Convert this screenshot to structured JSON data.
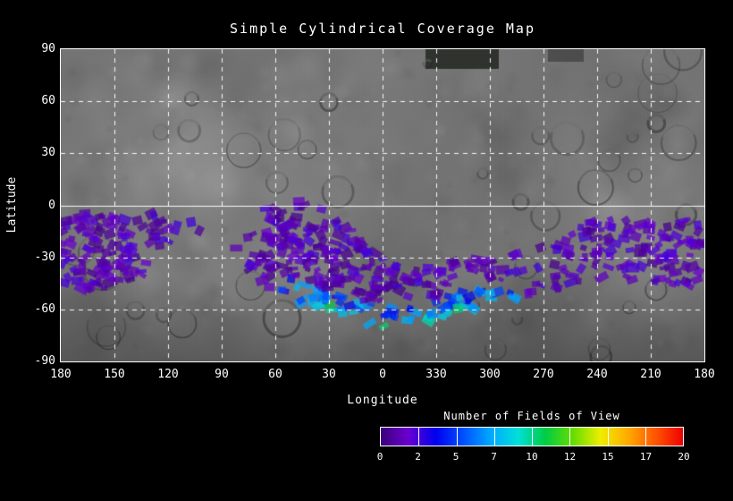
{
  "title": "Simple Cylindrical Coverage Map",
  "axes": {
    "x_label": "Longitude",
    "y_label": "Latitude",
    "x_ticks": [
      "180",
      "150",
      "120",
      "90",
      "60",
      "30",
      "0",
      "330",
      "300",
      "270",
      "240",
      "210",
      "180"
    ],
    "y_ticks": [
      "90",
      "60",
      "30",
      "0",
      "-30",
      "-60",
      "-90"
    ]
  },
  "colorbar": {
    "label": "Number of Fields of View",
    "tick_labels": [
      "0",
      "2",
      "5",
      "7",
      "10",
      "12",
      "15",
      "17",
      "20"
    ],
    "range": [
      0,
      20
    ],
    "border_color": "#ffffff",
    "gradient_stops": [
      "#3a0078",
      "#6a00d0",
      "#0000ee",
      "#0050ff",
      "#00a8ff",
      "#00e0d8",
      "#00cc44",
      "#66dd00",
      "#eeee00",
      "#ffaa00",
      "#ff5500",
      "#ee0000"
    ]
  },
  "chart_data": {
    "type": "heatmap",
    "title": "Simple Cylindrical Coverage Map",
    "xlabel": "Longitude",
    "ylabel": "Latitude",
    "projection": "simple cylindrical, longitude wraps 180 -> 0 -> 330 -> 180",
    "x_tick_values": [
      180,
      150,
      120,
      90,
      60,
      30,
      0,
      330,
      300,
      270,
      240,
      210,
      180
    ],
    "ylim": [
      -90,
      90
    ],
    "y_tick_values": [
      90,
      60,
      30,
      0,
      -30,
      -60,
      -90
    ],
    "grid": true,
    "background": "grayscale planetary surface basemap",
    "colorbar": {
      "label": "Number of Fields of View",
      "ticks": [
        0,
        2,
        5,
        7,
        10,
        12,
        15,
        17,
        20
      ],
      "range": [
        0,
        20
      ]
    },
    "dominant_value_range": [
      0,
      2
    ],
    "high_value_bands": [
      {
        "lon_range": [
          60,
          0
        ],
        "where": "lower edge of swath",
        "values": [
          3,
          8
        ]
      },
      {
        "lon_range": [
          360,
          300
        ],
        "where": "lower edge of swath",
        "values": [
          3,
          11
        ]
      }
    ],
    "coverage_swath": [
      {
        "lon": 180,
        "lat_top": -8,
        "lat_bottom": -48,
        "density": 0.8
      },
      {
        "lon": 165,
        "lat_top": -4,
        "lat_bottom": -50,
        "density": 0.9
      },
      {
        "lon": 150,
        "lat_top": -6,
        "lat_bottom": -48,
        "density": 0.8
      },
      {
        "lon": 135,
        "lat_top": -4,
        "lat_bottom": -40,
        "density": 0.6
      },
      {
        "lon": 122,
        "lat_top": -4,
        "lat_bottom": -22,
        "density": 0.5
      },
      {
        "lon": 110,
        "lat_top": -6,
        "lat_bottom": -18,
        "density": 0.25
      },
      {
        "lon": 95,
        "lat_top": -10,
        "lat_bottom": -20,
        "density": 0.05
      },
      {
        "lon": 80,
        "lat_top": -15,
        "lat_bottom": -30,
        "density": 0.05
      },
      {
        "lon": 68,
        "lat_top": -2,
        "lat_bottom": -45,
        "density": 0.7
      },
      {
        "lon": 60,
        "lat_top": 0,
        "lat_bottom": -50,
        "density": 0.95
      },
      {
        "lon": 50,
        "lat_top": 5,
        "lat_bottom": -55,
        "density": 0.95
      },
      {
        "lon": 40,
        "lat_top": 3,
        "lat_bottom": -58,
        "density": 0.9
      },
      {
        "lon": 30,
        "lat_top": -5,
        "lat_bottom": -62,
        "density": 0.9
      },
      {
        "lon": 20,
        "lat_top": -12,
        "lat_bottom": -66,
        "density": 0.85
      },
      {
        "lon": 10,
        "lat_top": -20,
        "lat_bottom": -68,
        "density": 0.8
      },
      {
        "lon": 0,
        "lat_top": -28,
        "lat_bottom": -70,
        "density": 0.8
      },
      {
        "lon": 350,
        "lat_top": -32,
        "lat_bottom": -70,
        "density": 0.8
      },
      {
        "lon": 340,
        "lat_top": -35,
        "lat_bottom": -68,
        "density": 0.8
      },
      {
        "lon": 330,
        "lat_top": -35,
        "lat_bottom": -66,
        "density": 0.75
      },
      {
        "lon": 320,
        "lat_top": -32,
        "lat_bottom": -64,
        "density": 0.7
      },
      {
        "lon": 310,
        "lat_top": -30,
        "lat_bottom": -60,
        "density": 0.65
      },
      {
        "lon": 300,
        "lat_top": -28,
        "lat_bottom": -58,
        "density": 0.6
      },
      {
        "lon": 290,
        "lat_top": -26,
        "lat_bottom": -55,
        "density": 0.45
      },
      {
        "lon": 280,
        "lat_top": -25,
        "lat_bottom": -52,
        "density": 0.35
      },
      {
        "lon": 270,
        "lat_top": -22,
        "lat_bottom": -50,
        "density": 0.35
      },
      {
        "lon": 258,
        "lat_top": -15,
        "lat_bottom": -48,
        "density": 0.5
      },
      {
        "lon": 246,
        "lat_top": -10,
        "lat_bottom": -46,
        "density": 0.65
      },
      {
        "lon": 234,
        "lat_top": -8,
        "lat_bottom": -44,
        "density": 0.7
      },
      {
        "lon": 222,
        "lat_top": -8,
        "lat_bottom": -44,
        "density": 0.7
      },
      {
        "lon": 210,
        "lat_top": -10,
        "lat_bottom": -44,
        "density": 0.7
      },
      {
        "lon": 198,
        "lat_top": -10,
        "lat_bottom": -46,
        "density": 0.75
      },
      {
        "lon": 188,
        "lat_top": -8,
        "lat_bottom": -46,
        "density": 0.75
      },
      {
        "lon": 181,
        "lat_top": -10,
        "lat_bottom": -44,
        "density": 0.7
      }
    ]
  }
}
